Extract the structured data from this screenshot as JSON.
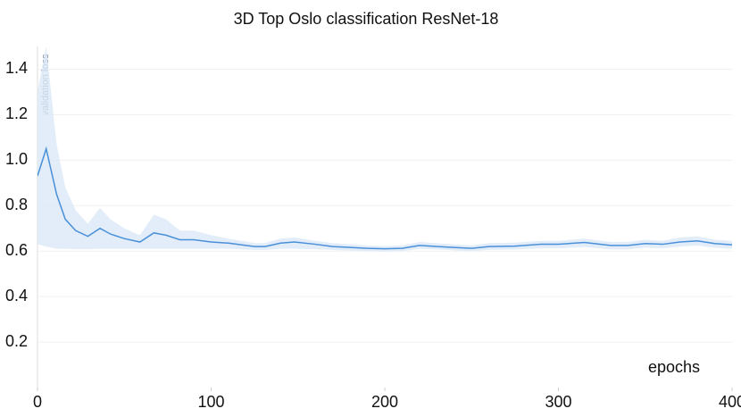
{
  "chart_data": {
    "type": "line",
    "title": "3D Top Oslo classification ResNet-18",
    "x_label": "epochs",
    "x": [
      0,
      5,
      11,
      16,
      22,
      29,
      36,
      42,
      50,
      59,
      67,
      74,
      82,
      90,
      100,
      110,
      125,
      131,
      140,
      148,
      160,
      170,
      190,
      200,
      210,
      220,
      235,
      250,
      260,
      275,
      290,
      300,
      315,
      330,
      340,
      350,
      360,
      370,
      380,
      390,
      400
    ],
    "series": [
      {
        "name": "validation loss",
        "color": "#4a90d9",
        "values": [
          0.93,
          1.05,
          0.85,
          0.74,
          0.69,
          0.665,
          0.7,
          0.675,
          0.655,
          0.64,
          0.68,
          0.67,
          0.65,
          0.65,
          0.64,
          0.635,
          0.62,
          0.62,
          0.635,
          0.64,
          0.63,
          0.62,
          0.612,
          0.61,
          0.612,
          0.625,
          0.618,
          0.612,
          0.62,
          0.622,
          0.63,
          0.63,
          0.638,
          0.625,
          0.625,
          0.633,
          0.63,
          0.64,
          0.645,
          0.633,
          0.628
        ]
      }
    ],
    "band_upper": [
      1.3,
      1.5,
      1.07,
      0.88,
      0.78,
      0.72,
      0.79,
      0.74,
      0.7,
      0.67,
      0.76,
      0.74,
      0.69,
      0.69,
      0.67,
      0.655,
      0.635,
      0.635,
      0.655,
      0.66,
      0.645,
      0.635,
      0.625,
      0.622,
      0.625,
      0.64,
      0.632,
      0.625,
      0.635,
      0.637,
      0.645,
      0.645,
      0.655,
      0.64,
      0.64,
      0.65,
      0.645,
      0.66,
      0.665,
      0.65,
      0.645
    ],
    "band_lower": [
      0.63,
      0.62,
      0.61,
      0.61,
      0.608,
      0.608,
      0.61,
      0.61,
      0.61,
      0.61,
      0.61,
      0.61,
      0.61,
      0.61,
      0.61,
      0.61,
      0.605,
      0.605,
      0.61,
      0.61,
      0.608,
      0.605,
      0.6,
      0.598,
      0.6,
      0.61,
      0.605,
      0.6,
      0.605,
      0.607,
      0.612,
      0.612,
      0.618,
      0.607,
      0.607,
      0.615,
      0.612,
      0.62,
      0.625,
      0.615,
      0.61
    ],
    "band_color": "#dbe9f8",
    "xlim": [
      0,
      400
    ],
    "xticks": [
      0,
      100,
      200,
      300,
      400
    ],
    "ylim": [
      0,
      1.5
    ],
    "yticks": [
      0.2,
      0.4,
      0.6,
      0.8,
      {
        "value": 1,
        "label": "1.0"
      },
      1.2,
      1.4
    ],
    "grid": true
  }
}
